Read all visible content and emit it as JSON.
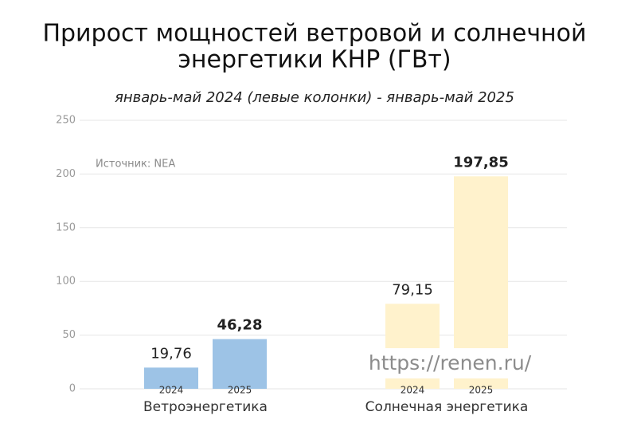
{
  "chart_data": {
    "type": "bar",
    "title": [
      "Прирост мощностей ветровой и солнечной",
      "энергетики КНР (ГВт)"
    ],
    "subtitle": "январь-май 2024 (левые колонки) - январь-май 2025",
    "annotations": [
      "Источник: NEA",
      "https://renen.ru/"
    ],
    "categories": [
      "Ветроэнергетика",
      "Солнечная энергетика"
    ],
    "category_colors": [
      "#9dc3e6",
      "#fff2cc"
    ],
    "series": [
      {
        "name": "2024",
        "values": [
          19.76,
          79.15
        ],
        "value_labels": [
          "19,76",
          "79,15"
        ]
      },
      {
        "name": "2025",
        "values": [
          46.28,
          197.85
        ],
        "value_labels": [
          "46,28",
          "197,85"
        ]
      }
    ],
    "ylim": [
      0,
      250
    ],
    "yticks": [
      0,
      50,
      100,
      150,
      200,
      250
    ],
    "grid": true
  }
}
